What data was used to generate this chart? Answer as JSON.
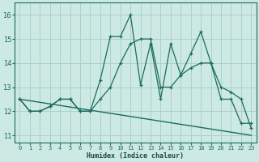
{
  "xlabel": "Humidex (Indice chaleur)",
  "background_color": "#cce9e4",
  "grid_color": "#aed0ca",
  "line_color": "#1a6b60",
  "xlim": [
    -0.5,
    23.5
  ],
  "ylim": [
    10.7,
    16.5
  ],
  "yticks": [
    11,
    12,
    13,
    14,
    15,
    16
  ],
  "xticks": [
    0,
    1,
    2,
    3,
    4,
    5,
    6,
    7,
    8,
    9,
    10,
    11,
    12,
    13,
    14,
    15,
    16,
    17,
    18,
    19,
    20,
    21,
    22,
    23
  ],
  "series1_x": [
    0,
    1,
    2,
    3,
    4,
    5,
    6,
    7,
    8,
    9,
    10,
    11,
    12,
    13,
    14,
    15,
    16,
    17,
    18,
    19,
    20,
    21,
    22,
    23
  ],
  "series1_y": [
    12.5,
    12.0,
    12.0,
    12.2,
    12.5,
    12.5,
    12.0,
    12.0,
    13.3,
    15.1,
    15.1,
    16.0,
    13.1,
    14.8,
    12.5,
    14.8,
    13.5,
    14.4,
    15.3,
    14.0,
    12.5,
    12.5,
    11.5,
    11.5
  ],
  "series2_x": [
    0,
    1,
    2,
    3,
    4,
    5,
    6,
    7,
    8,
    9,
    10,
    11,
    12,
    13,
    14,
    15,
    16,
    17,
    18,
    19,
    20,
    21,
    22,
    23
  ],
  "series2_y": [
    12.5,
    12.0,
    12.0,
    12.2,
    12.5,
    12.5,
    12.0,
    12.0,
    12.5,
    13.0,
    14.0,
    14.8,
    15.0,
    15.0,
    13.0,
    13.0,
    13.5,
    13.8,
    14.0,
    14.0,
    13.0,
    12.8,
    12.5,
    11.3
  ],
  "series3_x": [
    0,
    23
  ],
  "series3_y": [
    12.5,
    11.0
  ]
}
